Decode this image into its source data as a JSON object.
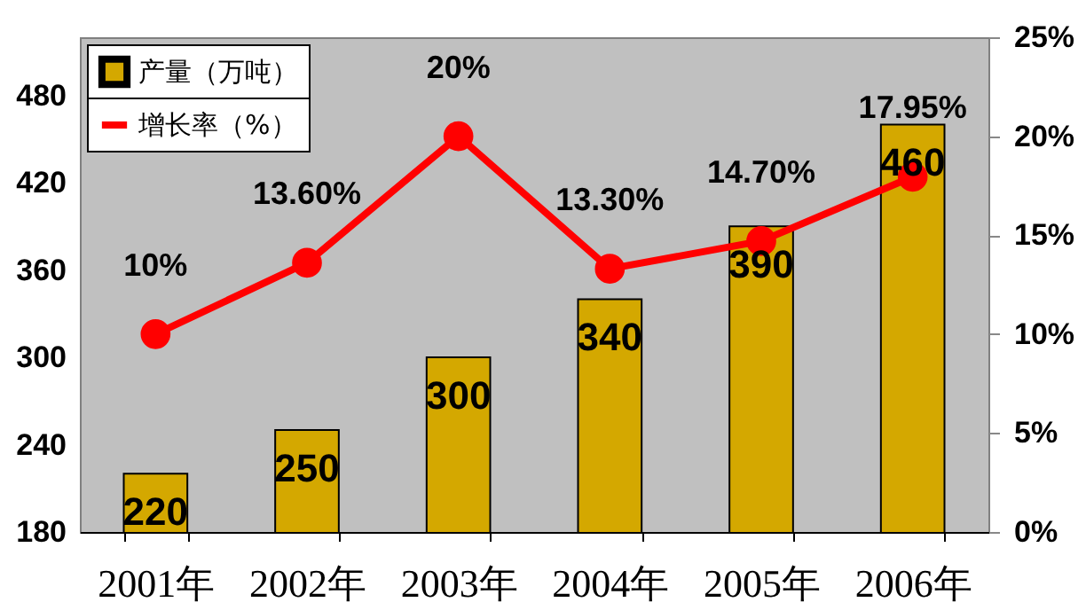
{
  "chart_data": {
    "type": "bar",
    "categories": [
      "2001年",
      "2002年",
      "2003年",
      "2004年",
      "2005年",
      "2006年"
    ],
    "series": [
      {
        "name": "产量（万吨）",
        "type": "bar",
        "color": "#d4a800",
        "values": [
          220,
          250,
          300,
          340,
          390,
          460
        ],
        "value_labels": [
          "220",
          "250",
          "300",
          "340",
          "390",
          "460"
        ]
      },
      {
        "name": "增长率（%）",
        "type": "line",
        "axis": "y2",
        "color": "#ff0000",
        "values": [
          10,
          13.6,
          20,
          13.3,
          14.7,
          17.95
        ],
        "value_labels": [
          "10%",
          "13.60%",
          "20%",
          "13.30%",
          "14.70%",
          "17.95%"
        ]
      }
    ],
    "ylim": [
      180,
      520
    ],
    "yticks": [
      180,
      240,
      300,
      360,
      420,
      480
    ],
    "y2lim": [
      0,
      25
    ],
    "y2ticks": [
      {
        "value": 0,
        "label": "0%"
      },
      {
        "value": 5,
        "label": "5%"
      },
      {
        "value": 10,
        "label": "10%"
      },
      {
        "value": 15,
        "label": "15%"
      },
      {
        "value": 20,
        "label": "20%"
      },
      {
        "value": 25,
        "label": "25%"
      }
    ],
    "legend": "top left",
    "marker": "circle",
    "line_style": "solid"
  }
}
